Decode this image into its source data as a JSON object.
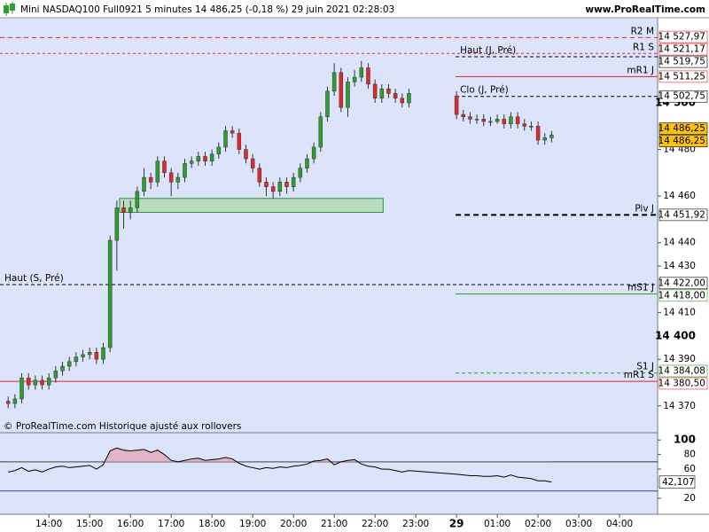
{
  "header": {
    "title": "Mini NASDAQ100 Full0921 5 minutes 14 486,25 (-0,18 %) 29 juin 2021 02:28:03",
    "site": "www.ProRealTime.com"
  },
  "chart_data": [
    {
      "type": "candlestick",
      "note": "© ProRealTime.com Historique ajusté aux rollovers",
      "background": "#dce4fc",
      "up_color": "#2e9e2e",
      "down_color": "#e02a2a",
      "xlim": [
        -72,
        896
      ],
      "ylim": [
        14358.5,
        14536.5
      ],
      "xticks": [
        {
          "value": 0,
          "label": "14:00"
        },
        {
          "value": 60,
          "label": "15:00"
        },
        {
          "value": 120,
          "label": "16:00"
        },
        {
          "value": 180,
          "label": "17:00"
        },
        {
          "value": 240,
          "label": "18:00"
        },
        {
          "value": 300,
          "label": "19:00"
        },
        {
          "value": 360,
          "label": "20:00"
        },
        {
          "value": 420,
          "label": "21:00"
        },
        {
          "value": 480,
          "label": "22:00"
        },
        {
          "value": 540,
          "label": "23:00"
        },
        {
          "value": 600,
          "label": "29"
        },
        {
          "value": 660,
          "label": "01:00"
        },
        {
          "value": 720,
          "label": "02:00"
        },
        {
          "value": 780,
          "label": "03:00"
        },
        {
          "value": 840,
          "label": "04:00"
        }
      ],
      "yticks": [
        {
          "value": 14370,
          "label": "14 370"
        },
        {
          "value": 14390,
          "label": "14 390"
        },
        {
          "value": 14400,
          "label": "14 400"
        },
        {
          "value": 14410,
          "label": "14 410"
        },
        {
          "value": 14430,
          "label": "14 430"
        },
        {
          "value": 14440,
          "label": "14 440"
        },
        {
          "value": 14460,
          "label": "14 460"
        },
        {
          "value": 14480,
          "label": "14 480"
        },
        {
          "value": 14500,
          "label": "14 500"
        }
      ],
      "x": [
        -60,
        -50,
        -40,
        -30,
        -20,
        -10,
        0,
        10,
        20,
        30,
        40,
        50,
        60,
        70,
        80,
        90,
        100,
        110,
        120,
        130,
        140,
        150,
        160,
        170,
        180,
        190,
        200,
        210,
        220,
        230,
        240,
        250,
        260,
        270,
        280,
        290,
        300,
        310,
        320,
        330,
        340,
        350,
        360,
        370,
        380,
        390,
        400,
        410,
        420,
        430,
        440,
        450,
        460,
        470,
        480,
        490,
        500,
        510,
        520,
        530,
        600,
        610,
        620,
        630,
        640,
        650,
        660,
        670,
        680,
        690,
        700,
        710,
        720,
        730,
        740
      ],
      "candles": [
        [
          14372,
          14374,
          14369,
          14371
        ],
        [
          14371,
          14375,
          14369,
          14373
        ],
        [
          14373,
          14384,
          14371,
          14382
        ],
        [
          14382,
          14384,
          14377,
          14379
        ],
        [
          14379,
          14383,
          14377,
          14381
        ],
        [
          14381,
          14383,
          14377,
          14379
        ],
        [
          14379,
          14384,
          14377,
          14382
        ],
        [
          14382,
          14387,
          14380,
          14385
        ],
        [
          14385,
          14389,
          14383,
          14387
        ],
        [
          14387,
          14391,
          14385,
          14389
        ],
        [
          14389,
          14393,
          14387,
          14391
        ],
        [
          14391,
          14394,
          14389,
          14392
        ],
        [
          14392,
          14395,
          14390,
          14393
        ],
        [
          14393,
          14395,
          14388,
          14390
        ],
        [
          14390,
          14397,
          14388,
          14395
        ],
        [
          14395,
          14443,
          14393,
          14441
        ],
        [
          14441,
          14458,
          14428,
          14455
        ],
        [
          14455,
          14458,
          14446,
          14453
        ],
        [
          14453,
          14458,
          14450,
          14455
        ],
        [
          14455,
          14464,
          14453,
          14462
        ],
        [
          14462,
          14472,
          14460,
          14468
        ],
        [
          14468,
          14470,
          14463,
          14466
        ],
        [
          14466,
          14477,
          14464,
          14475
        ],
        [
          14475,
          14477,
          14468,
          14470
        ],
        [
          14470,
          14472,
          14460,
          14466
        ],
        [
          14466,
          14470,
          14463,
          14468
        ],
        [
          14468,
          14476,
          14466,
          14474
        ],
        [
          14474,
          14477,
          14472,
          14475
        ],
        [
          14475,
          14479,
          14473,
          14477
        ],
        [
          14477,
          14479,
          14473,
          14475
        ],
        [
          14475,
          14480,
          14473,
          14478
        ],
        [
          14478,
          14483,
          14476,
          14481
        ],
        [
          14481,
          14490,
          14479,
          14488
        ],
        [
          14488,
          14490,
          14485,
          14487
        ],
        [
          14487,
          14489,
          14478,
          14480
        ],
        [
          14480,
          14482,
          14474,
          14476
        ],
        [
          14476,
          14478,
          14470,
          14472
        ],
        [
          14472,
          14474,
          14464,
          14466
        ],
        [
          14466,
          14468,
          14460,
          14464
        ],
        [
          14464,
          14466,
          14459,
          14462
        ],
        [
          14462,
          14468,
          14460,
          14466
        ],
        [
          14466,
          14468,
          14461,
          14464
        ],
        [
          14464,
          14470,
          14462,
          14468
        ],
        [
          14468,
          14474,
          14466,
          14472
        ],
        [
          14472,
          14478,
          14470,
          14476
        ],
        [
          14476,
          14483,
          14474,
          14481
        ],
        [
          14481,
          14496,
          14479,
          14494
        ],
        [
          14494,
          14507,
          14492,
          14505
        ],
        [
          14505,
          14517,
          14503,
          14513
        ],
        [
          14513,
          14515,
          14496,
          14498
        ],
        [
          14498,
          14511,
          14494,
          14509
        ],
        [
          14509,
          14514,
          14507,
          14511
        ],
        [
          14511,
          14518,
          14509,
          14515
        ],
        [
          14515,
          14517,
          14506,
          14508
        ],
        [
          14508,
          14510,
          14500,
          14502
        ],
        [
          14502,
          14508,
          14500,
          14506
        ],
        [
          14506,
          14508,
          14502,
          14504
        ],
        [
          14504,
          14506,
          14500,
          14502
        ],
        [
          14502,
          14504,
          14498,
          14500
        ],
        [
          14500,
          14506,
          14498,
          14504
        ],
        [
          14503,
          14505,
          14493,
          14495
        ],
        [
          14495,
          14497,
          14492,
          14494
        ],
        [
          14494,
          14496,
          14491,
          14493
        ],
        [
          14493,
          14495,
          14491,
          14493
        ],
        [
          14493,
          14495,
          14490,
          14492
        ],
        [
          14492,
          14494,
          14490,
          14492
        ],
        [
          14492,
          14495,
          14491,
          14493
        ],
        [
          14493,
          14495,
          14489,
          14491
        ],
        [
          14491,
          14496,
          14489,
          14494
        ],
        [
          14494,
          14496,
          14489,
          14491
        ],
        [
          14491,
          14493,
          14488,
          14490
        ],
        [
          14490,
          14492,
          14488,
          14490
        ],
        [
          14490,
          14492,
          14482,
          14484
        ],
        [
          14484,
          14487,
          14482,
          14485
        ],
        [
          14485,
          14488,
          14483,
          14486.25
        ]
      ],
      "zone": {
        "x": [
          104,
          492
        ],
        "y": [
          14453,
          14459
        ],
        "color": "#b8dcc0"
      },
      "levels": [
        {
          "name": "R2 M",
          "value": 14527.97,
          "label": "14 527,97",
          "color": "#e8202a",
          "dash": "5,4",
          "span": "full",
          "side": "right"
        },
        {
          "name": "R1 S",
          "value": 14521.17,
          "label": "14 521,17",
          "color": "#e8202a",
          "dash": "3,3",
          "span": "full",
          "side": "right"
        },
        {
          "name": "Haut (J, Pré)",
          "value": 14519.75,
          "label": "14 519,75",
          "color": "#000000",
          "dash": "4,3",
          "span": "session",
          "side": "left"
        },
        {
          "name": "mR1 J",
          "value": 14511.25,
          "label": "14 511,25",
          "color": "#e8202a",
          "dash": "",
          "span": "session",
          "side": "right"
        },
        {
          "name": "Clo (J, Pré)",
          "value": 14502.75,
          "label": "14 502,75",
          "color": "#000000",
          "dash": "4,3",
          "span": "session",
          "side": "left"
        },
        {
          "name": "Piv J",
          "value": 14451.92,
          "label": "14 451,92",
          "color": "#000000",
          "dash": "6,4",
          "span": "session",
          "side": "right",
          "width": 2
        },
        {
          "name": "Haut (S, Pré)",
          "value": 14422,
          "label": "14 422,00",
          "color": "#000000",
          "dash": "4,3",
          "span": "full",
          "side": "left"
        },
        {
          "name": "mS1 J",
          "value": 14418,
          "label": "14 418,00",
          "color": "#2e9e2e",
          "dash": "",
          "span": "session",
          "side": "right"
        },
        {
          "name": "S1 J",
          "value": 14384.08,
          "label": "14 384,08",
          "color": "#2e9e2e",
          "dash": "4,3",
          "span": "session",
          "side": "right"
        },
        {
          "name": "mR1 S",
          "value": 14380.5,
          "label": "14 380,50",
          "color": "#e8202a",
          "dash": "",
          "span": "full",
          "side": "right"
        }
      ],
      "price_tags": [
        {
          "value": 14486.25,
          "label": "14 486,25"
        },
        {
          "value": 14486.25,
          "label": "14 486,25"
        }
      ],
      "tag_color": "#ffc20e"
    },
    {
      "type": "line",
      "color": "#000000",
      "ylim": [
        -2,
        110
      ],
      "yticks": [
        100,
        80,
        60,
        20
      ],
      "levels": [
        70,
        30
      ],
      "fill_color": "#e2b4c8",
      "values": [
        56,
        58,
        62,
        57,
        59,
        56,
        60,
        63,
        64,
        62,
        63,
        64,
        65,
        60,
        66,
        85,
        89,
        86,
        85,
        86,
        87,
        83,
        86,
        80,
        72,
        70,
        72,
        74,
        75,
        72,
        73,
        74,
        76,
        74,
        68,
        64,
        62,
        60,
        62,
        61,
        63,
        62,
        64,
        65,
        67,
        71,
        72,
        74,
        66,
        70,
        72,
        73,
        67,
        64,
        63,
        60,
        60,
        58,
        56,
        58,
        53,
        52,
        51,
        51,
        50,
        50,
        51,
        49,
        52,
        49,
        48,
        47,
        44,
        44,
        42.107
      ],
      "value_label": "42,107"
    }
  ]
}
